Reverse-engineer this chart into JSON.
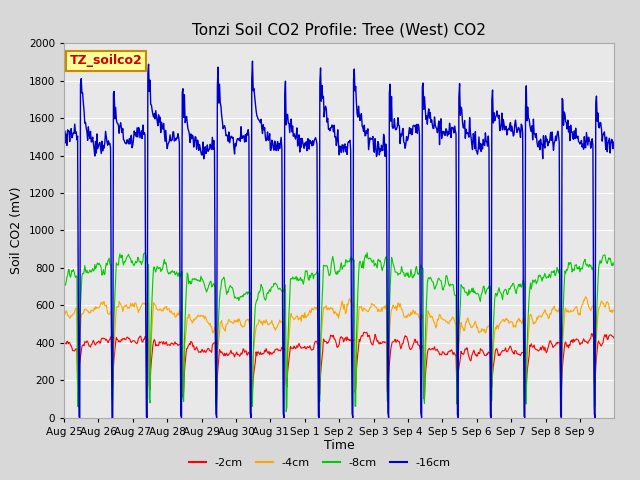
{
  "title": "Tonzi Soil CO2 Profile: Tree (West) CO2",
  "ylabel": "Soil CO2 (mV)",
  "xlabel": "Time",
  "legend_label": "TZ_soilco2",
  "series_labels": [
    "-2cm",
    "-4cm",
    "-8cm",
    "-16cm"
  ],
  "series_colors": [
    "#ff0000",
    "#ffa500",
    "#00cc00",
    "#0000cc"
  ],
  "ylim": [
    0,
    2000
  ],
  "yticks": [
    0,
    200,
    400,
    600,
    800,
    1000,
    1200,
    1400,
    1600,
    1800,
    2000
  ],
  "xtick_labels": [
    "Aug 25",
    "Aug 26",
    "Aug 27",
    "Aug 28",
    "Aug 29",
    "Aug 30",
    "Aug 31",
    "Sep 1",
    "Sep 2",
    "Sep 3",
    "Sep 4",
    "Sep 5",
    "Sep 6",
    "Sep 7",
    "Sep 8",
    "Sep 9"
  ],
  "bg_color": "#d8d8d8",
  "plot_bg_color": "#e8e8e8",
  "legend_box_color": "#ffff99",
  "legend_box_edge": "#cc8800",
  "title_fontsize": 11,
  "axis_label_fontsize": 9,
  "tick_fontsize": 7.5,
  "legend_fontsize": 8,
  "days": 16,
  "pts_per_day": 48
}
